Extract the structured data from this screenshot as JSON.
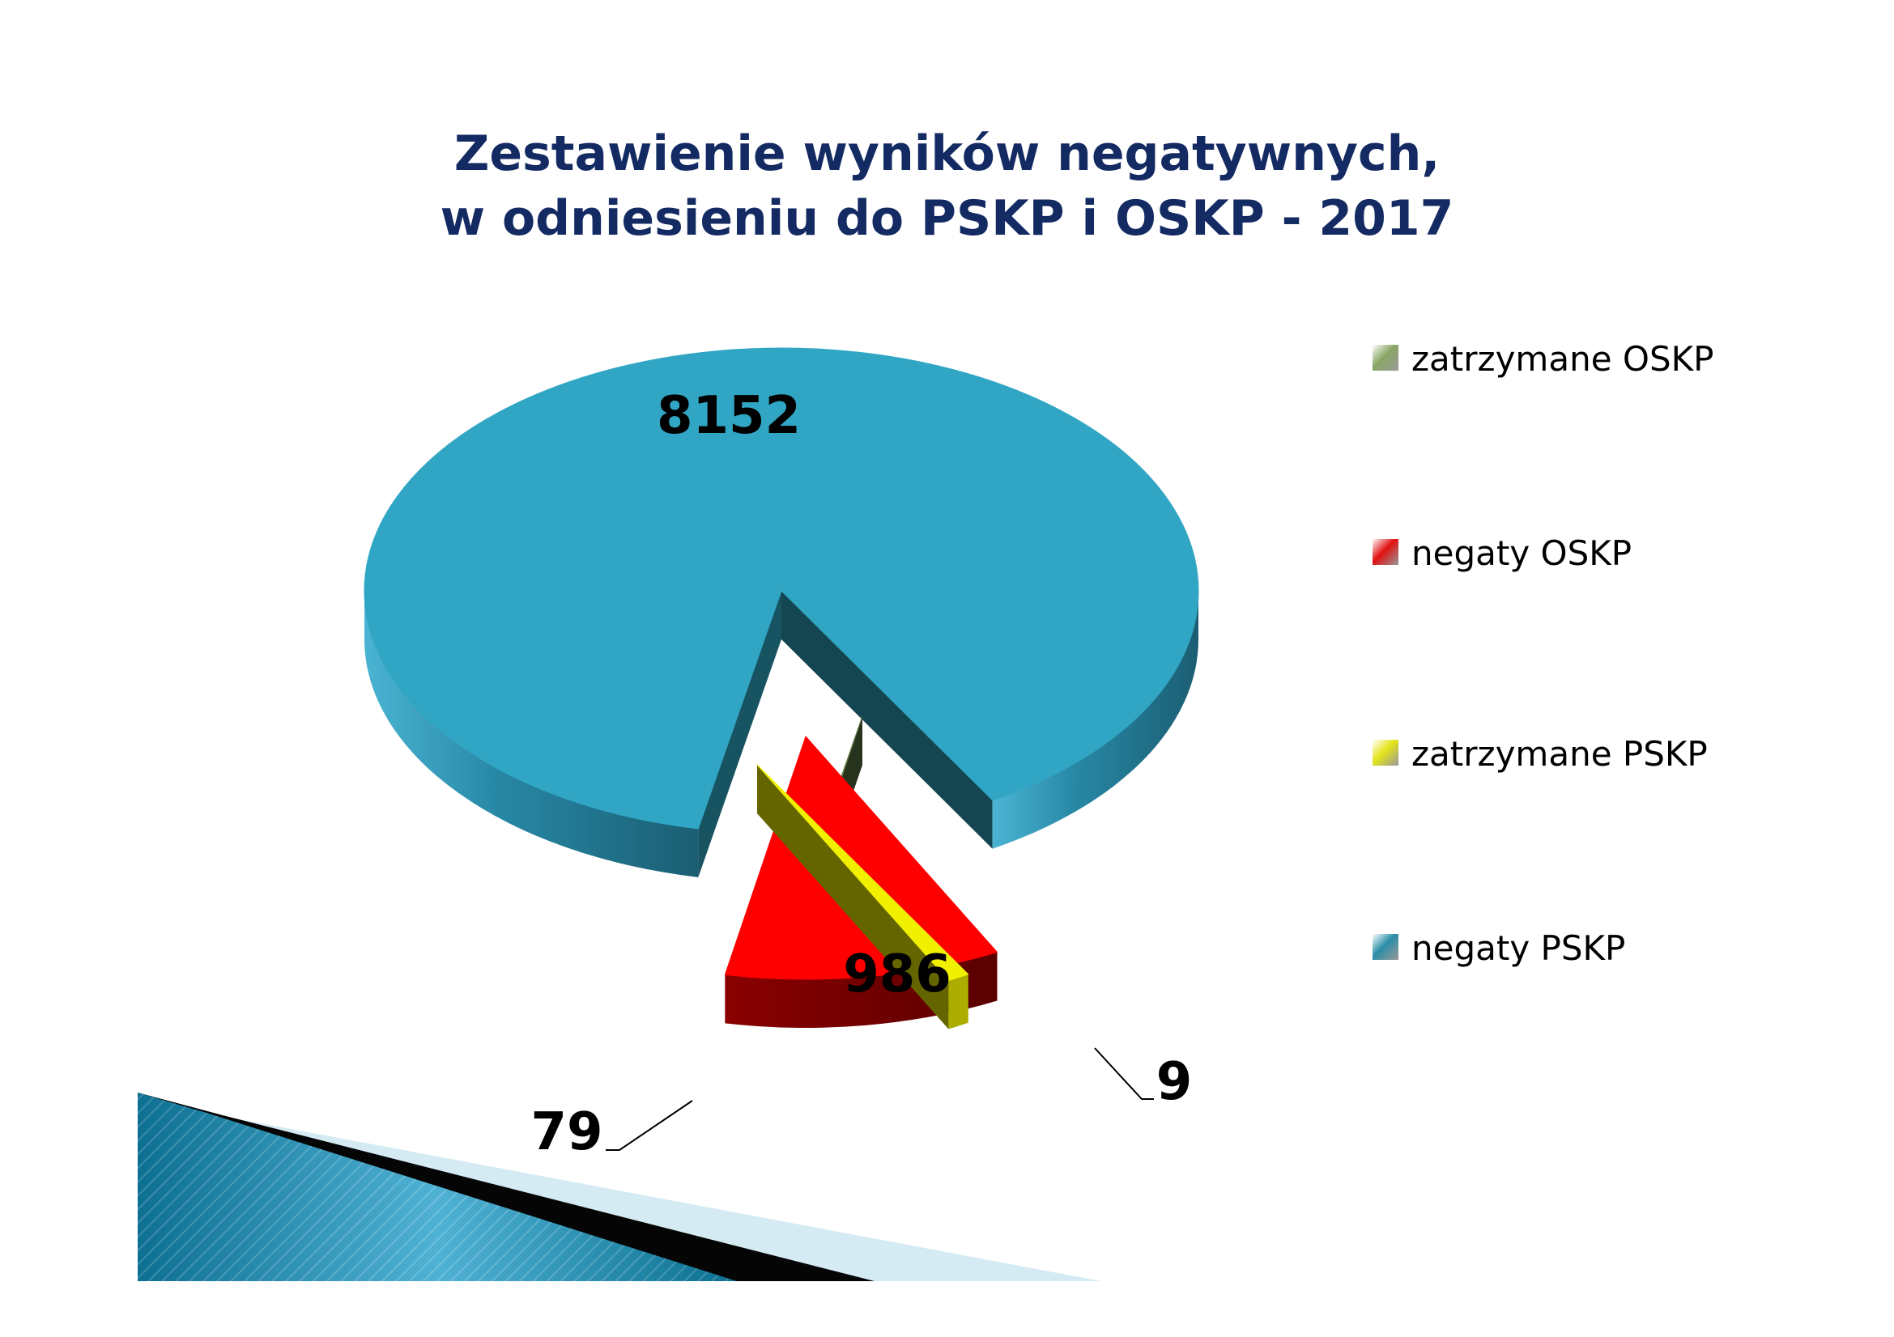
{
  "chart_data": {
    "type": "pie",
    "title_lines": [
      "Zestawienie wyników negatywnych,",
      "w odniesieniu do PSKP i OSKP - 2017"
    ],
    "slices": [
      {
        "label": "negaty PSKP",
        "value": 8152,
        "color": "#30a6c4"
      },
      {
        "label": "zatrzymane PSKP",
        "value": 79,
        "color": "#f0f000"
      },
      {
        "label": "negaty OSKP",
        "value": 986,
        "color": "#ff0000"
      },
      {
        "label": "zatrzymane OSKP",
        "value": 9,
        "color": "#5f7a45"
      }
    ],
    "data_labels": [
      "8152",
      "79",
      "986",
      "9"
    ],
    "legend": {
      "position": "right",
      "items": [
        {
          "label": "zatrzymane OSKP",
          "color": "#8aa764"
        },
        {
          "label": "negaty OSKP",
          "color": "#e01010"
        },
        {
          "label": "zatrzymane PSKP",
          "color": "#e4e41a"
        },
        {
          "label": "negaty PSKP",
          "color": "#2b8ea8"
        }
      ]
    },
    "style": "3d exploded pie"
  }
}
